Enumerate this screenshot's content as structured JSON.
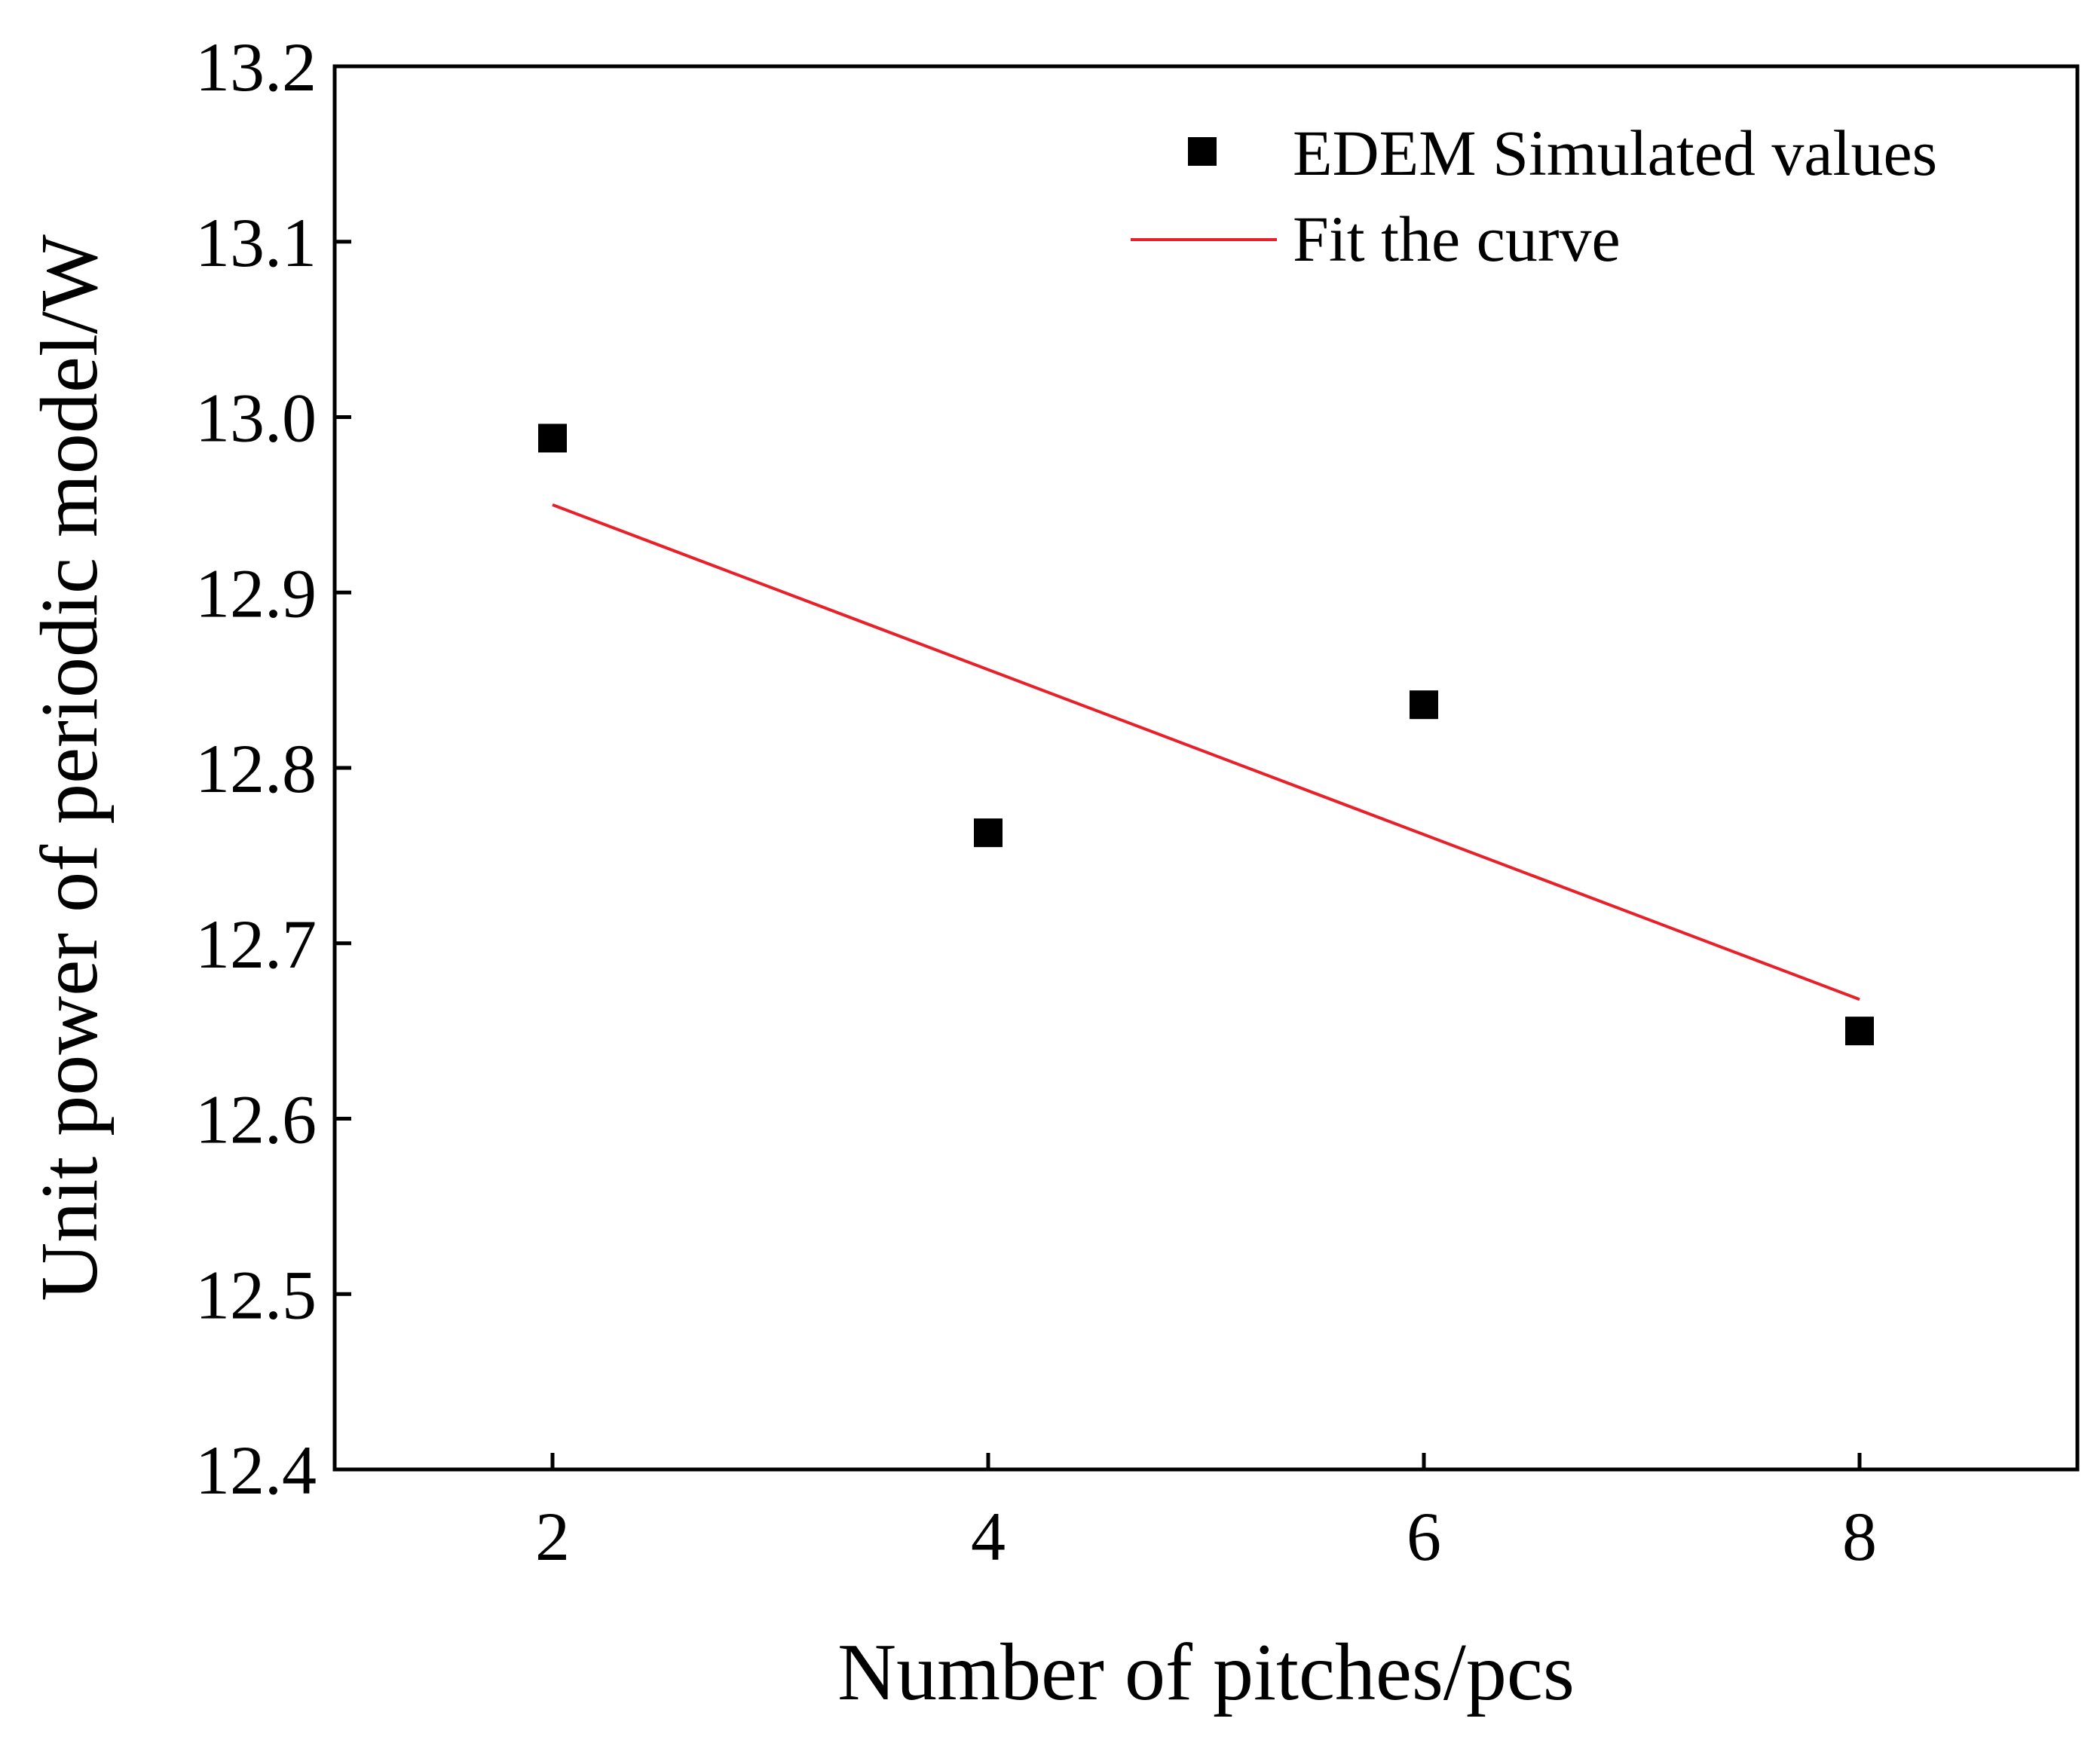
{
  "chart_data": {
    "type": "scatter",
    "title": "",
    "xlabel": "Number of pitches/pcs",
    "ylabel": "Unit power of periodic model/W",
    "xlim": [
      1,
      9
    ],
    "ylim": [
      12.4,
      13.2
    ],
    "xticks": [
      "2",
      "4",
      "6",
      "8"
    ],
    "yticks": [
      "12.4",
      "12.5",
      "12.6",
      "12.7",
      "12.8",
      "12.9",
      "13.0",
      "13.1",
      "13.2"
    ],
    "grid": false,
    "legend_position": "top-right",
    "series": [
      {
        "name": "EDEM Simulated values",
        "kind": "scatter",
        "marker": "square",
        "color": "#000000",
        "x": [
          2,
          4,
          6,
          8
        ],
        "y": [
          12.988,
          12.763,
          12.836,
          12.65
        ]
      },
      {
        "name": "Fit the curve",
        "kind": "line",
        "color": "#e8202a",
        "x": [
          2,
          8
        ],
        "y": [
          12.95,
          12.668
        ]
      }
    ]
  }
}
